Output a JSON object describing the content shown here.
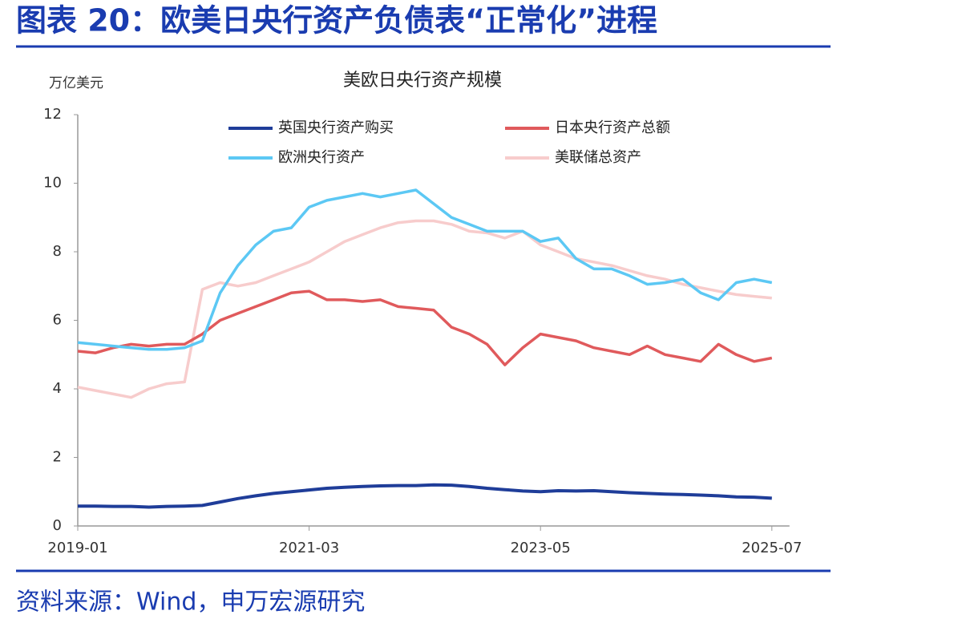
{
  "header": {
    "title": "图表 20：欧美日央行资产负债表“正常化”进程"
  },
  "source": "资料来源：Wind，申万宏源研究",
  "chart_data": {
    "type": "line",
    "title": "美欧日央行资产规模",
    "y_label": "万亿美元",
    "x": [
      "2019-01",
      "2019-03",
      "2019-05",
      "2019-07",
      "2019-09",
      "2019-11",
      "2020-01",
      "2020-03",
      "2020-05",
      "2020-07",
      "2020-09",
      "2020-11",
      "2021-01",
      "2021-03",
      "2021-05",
      "2021-07",
      "2021-09",
      "2021-11",
      "2022-01",
      "2022-03",
      "2022-05",
      "2022-07",
      "2022-09",
      "2022-11",
      "2023-01",
      "2023-03",
      "2023-05",
      "2023-07",
      "2023-09",
      "2023-11",
      "2024-01",
      "2024-03",
      "2024-05",
      "2024-07",
      "2024-09",
      "2024-11",
      "2025-01",
      "2025-03",
      "2025-05",
      "2025-07"
    ],
    "xticks": [
      "2019-01",
      "2021-03",
      "2023-05",
      "2025-07"
    ],
    "ylim": [
      0,
      12
    ],
    "yticks": [
      0,
      2,
      4,
      6,
      8,
      10,
      12
    ],
    "series": [
      {
        "name": "英国央行资产购买",
        "color": "#1f3d99",
        "values": [
          0.58,
          0.58,
          0.57,
          0.57,
          0.55,
          0.57,
          0.58,
          0.6,
          0.7,
          0.8,
          0.88,
          0.95,
          1.0,
          1.05,
          1.1,
          1.13,
          1.15,
          1.17,
          1.18,
          1.18,
          1.2,
          1.19,
          1.15,
          1.1,
          1.06,
          1.02,
          1.0,
          1.03,
          1.02,
          1.03,
          1.0,
          0.97,
          0.95,
          0.93,
          0.92,
          0.9,
          0.88,
          0.85,
          0.84,
          0.81
        ]
      },
      {
        "name": "日本央行资产总额",
        "color": "#e05a5c",
        "values": [
          5.1,
          5.05,
          5.2,
          5.3,
          5.25,
          5.3,
          5.3,
          5.6,
          6.0,
          6.2,
          6.4,
          6.6,
          6.8,
          6.85,
          6.6,
          6.6,
          6.55,
          6.6,
          6.4,
          6.35,
          6.3,
          5.8,
          5.6,
          5.3,
          4.7,
          5.2,
          5.6,
          5.5,
          5.4,
          5.2,
          5.1,
          5.0,
          5.25,
          5.0,
          4.9,
          4.8,
          5.3,
          5.0,
          4.8,
          4.9
        ]
      },
      {
        "name": "欧洲央行资产",
        "color": "#5cc8f4",
        "values": [
          5.35,
          5.3,
          5.25,
          5.2,
          5.15,
          5.15,
          5.2,
          5.4,
          6.8,
          7.6,
          8.2,
          8.6,
          8.7,
          9.3,
          9.5,
          9.6,
          9.7,
          9.6,
          9.7,
          9.8,
          9.4,
          9.0,
          8.8,
          8.6,
          8.6,
          8.6,
          8.3,
          8.4,
          7.8,
          7.5,
          7.5,
          7.3,
          7.05,
          7.1,
          7.2,
          6.8,
          6.6,
          7.1,
          7.2,
          7.1
        ]
      },
      {
        "name": "美联储总资产",
        "color": "#f7cccc",
        "values": [
          4.05,
          3.95,
          3.85,
          3.75,
          4.0,
          4.15,
          4.2,
          6.9,
          7.1,
          7.0,
          7.1,
          7.3,
          7.5,
          7.7,
          8.0,
          8.3,
          8.5,
          8.7,
          8.85,
          8.9,
          8.9,
          8.8,
          8.6,
          8.55,
          8.4,
          8.6,
          8.2,
          8.0,
          7.8,
          7.7,
          7.6,
          7.45,
          7.3,
          7.2,
          7.05,
          6.95,
          6.85,
          6.75,
          6.7,
          6.65
        ]
      }
    ]
  }
}
